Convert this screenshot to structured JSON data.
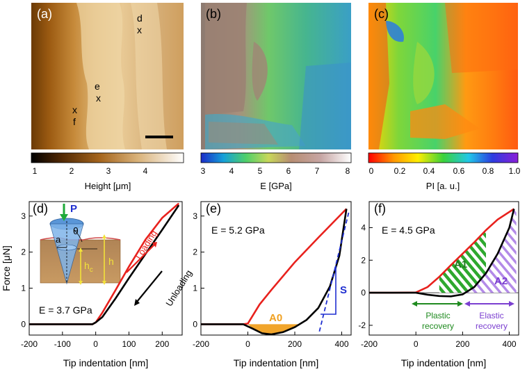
{
  "maps": {
    "a": {
      "label": "(a)",
      "markers": [
        {
          "id": "d",
          "letter": "d",
          "x_label": "x"
        },
        {
          "id": "e",
          "letter": "e",
          "x_label": "x"
        },
        {
          "id": "f",
          "letter": "f",
          "x_label": "x"
        }
      ],
      "colorbar": {
        "ticks": [
          "1",
          "2",
          "3",
          "4"
        ],
        "label": "Height [μm]"
      }
    },
    "b": {
      "label": "(b)",
      "colorbar": {
        "ticks": [
          "3",
          "4",
          "5",
          "6",
          "7",
          "8"
        ],
        "label": "E [GPa]"
      }
    },
    "c": {
      "label": "(c)",
      "colorbar": {
        "ticks": [
          "0",
          "0.2",
          "0.4",
          "0.6",
          "0.8",
          "1.0"
        ],
        "label": "PI [a. u.]"
      }
    }
  },
  "chart_data": [
    {
      "type": "line",
      "panel": "(d)",
      "title": "",
      "xlabel": "Tip indentation [nm]",
      "ylabel": "Force [μN]",
      "xlim": [
        -200,
        260
      ],
      "ylim": [
        -0.3,
        3.4
      ],
      "xticks": [
        -200,
        -100,
        0,
        100,
        200
      ],
      "yticks": [
        0,
        1,
        2,
        3
      ],
      "annotation": "E = 3.7 GPa",
      "inset": {
        "force": "P",
        "angle": "θ",
        "contact_radius": "a",
        "contact_depth": "h",
        "contact_depth_sub": "c",
        "depth": "h"
      },
      "arrows": {
        "loading": "Loading",
        "unloading": "Unloading"
      },
      "series": [
        {
          "name": "Loading",
          "color": "#e8211d",
          "x": [
            -200,
            -100,
            -10,
            0,
            20,
            60,
            100,
            150,
            200,
            250
          ],
          "y": [
            0,
            0,
            0,
            0.05,
            0.32,
            0.95,
            1.6,
            2.35,
            2.95,
            3.35
          ]
        },
        {
          "name": "Unloading",
          "color": "#000000",
          "x": [
            -200,
            -100,
            -10,
            0,
            20,
            60,
            100,
            150,
            200,
            250
          ],
          "y": [
            0,
            0,
            0,
            0.05,
            0.2,
            0.72,
            1.28,
            1.95,
            2.62,
            3.3
          ]
        }
      ]
    },
    {
      "type": "line",
      "panel": "(e)",
      "xlabel": "Tip indentation [nm]",
      "xlim": [
        -200,
        440
      ],
      "ylim": [
        -0.3,
        3.4
      ],
      "xticks": [
        -200,
        0,
        200,
        400
      ],
      "yticks": [
        0,
        1,
        2,
        3
      ],
      "annotation": "E = 5.2 GPa",
      "area_label": "A0",
      "stiffness_label": "S",
      "series": [
        {
          "name": "Loading",
          "color": "#e8211d",
          "x": [
            -200,
            -100,
            -20,
            0,
            50,
            100,
            200,
            300,
            420
          ],
          "y": [
            0,
            0,
            0,
            0.02,
            0.55,
            0.95,
            1.72,
            2.4,
            3.2
          ]
        },
        {
          "name": "Unloading",
          "color": "#000000",
          "x": [
            -200,
            -100,
            -20,
            20,
            60,
            100,
            150,
            200,
            250,
            300,
            350,
            390,
            420
          ],
          "y": [
            0,
            0,
            0,
            -0.12,
            -0.25,
            -0.28,
            -0.22,
            -0.08,
            0.12,
            0.45,
            1.05,
            1.9,
            3.2
          ]
        },
        {
          "name": "Tangent",
          "color": "#1f2fd0",
          "dashed": true,
          "x": [
            305,
            430
          ],
          "y": [
            -0.2,
            3.1
          ]
        }
      ]
    },
    {
      "type": "line",
      "panel": "(f)",
      "xlabel": "Tip indentation [nm]",
      "xlim": [
        -200,
        440
      ],
      "ylim": [
        -2.6,
        5.6
      ],
      "xticks": [
        -200,
        0,
        200,
        400
      ],
      "yticks": [
        -2,
        0,
        2,
        4
      ],
      "annotation": "E = 4.5 GPa",
      "area_labels": [
        "A1",
        "A2"
      ],
      "recovery_labels": {
        "plastic": [
          "Plastic",
          "recovery"
        ],
        "elastic": [
          "Elastic",
          "recovery"
        ]
      },
      "series": [
        {
          "name": "Loading",
          "color": "#e8211d",
          "x": [
            -200,
            -100,
            0,
            50,
            100,
            150,
            200,
            250,
            300,
            350,
            420
          ],
          "y": [
            0,
            0,
            0.02,
            0.35,
            0.98,
            1.7,
            2.4,
            3.1,
            3.85,
            4.5,
            5.15
          ]
        },
        {
          "name": "Unloading",
          "color": "#000000",
          "x": [
            -200,
            -100,
            0,
            50,
            100,
            150,
            200,
            250,
            300,
            350,
            400,
            420
          ],
          "y": [
            0,
            0,
            0,
            -0.12,
            -0.2,
            -0.22,
            -0.1,
            0.35,
            1.2,
            2.4,
            4.0,
            5.15
          ]
        }
      ]
    }
  ]
}
